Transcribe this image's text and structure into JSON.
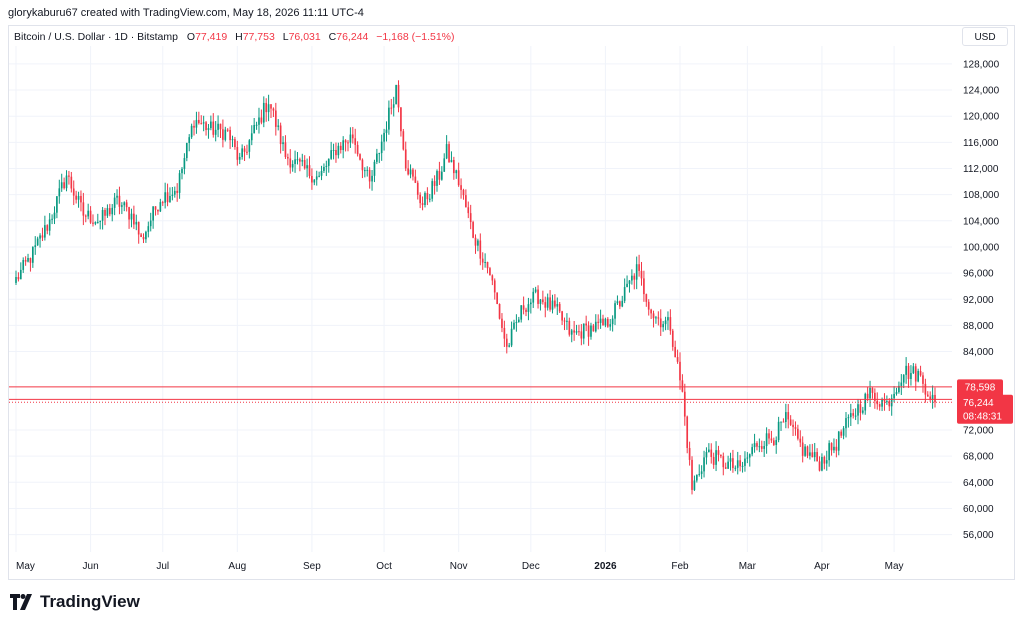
{
  "header": {
    "attribution": "glorykaburu67 created with TradingView.com, May 18, 2026 11:11 UTC-4"
  },
  "legend": {
    "symbol": "Bitcoin / U.S. Dollar · 1D · Bitstamp",
    "open_label": "O",
    "open": "77,419",
    "high_label": "H",
    "high": "77,753",
    "low_label": "L",
    "low": "76,031",
    "close_label": "C",
    "close": "76,244",
    "change": "−1,168 (−1.51%)"
  },
  "currency": "USD",
  "brand": {
    "name": "TradingView",
    "logo_icon": "tradingview-logo-icon"
  },
  "colors": {
    "up": "#089981",
    "down": "#f23645",
    "grid": "#f0f3fa",
    "price_label": "#f23645"
  },
  "chart_data": {
    "type": "candlestick",
    "title": "Bitcoin / U.S. Dollar · 1D · Bitstamp",
    "x_tick_labels": [
      "May",
      "Jun",
      "Jul",
      "Aug",
      "Sep",
      "Oct",
      "Nov",
      "Dec",
      "2026",
      "Feb",
      "Mar",
      "Apr",
      "May"
    ],
    "y_tick_labels": [
      "128,000",
      "124,000",
      "120,000",
      "116,000",
      "112,000",
      "108,000",
      "104,000",
      "100,000",
      "96,000",
      "92,000",
      "88,000",
      "84,000",
      "72,000",
      "68,000",
      "64,000",
      "60,000",
      "56,000"
    ],
    "y_ticks": [
      128000,
      124000,
      120000,
      116000,
      112000,
      108000,
      104000,
      100000,
      96000,
      92000,
      88000,
      84000,
      72000,
      68000,
      64000,
      60000,
      56000
    ],
    "ylim": [
      53500,
      130500
    ],
    "grid": true,
    "price_lines": [
      {
        "label": "78,598",
        "value": 78598
      },
      {
        "label": "76,678",
        "value": 76678
      }
    ],
    "last_price": {
      "label": "76,244",
      "countdown": "08:48:31",
      "value": 76244
    },
    "price_path_approx": [
      {
        "date": "2025-05-01",
        "close": 95000
      },
      {
        "date": "2025-05-08",
        "close": 99000
      },
      {
        "date": "2025-05-15",
        "close": 104000
      },
      {
        "date": "2025-05-22",
        "close": 111000
      },
      {
        "date": "2025-05-29",
        "close": 105000
      },
      {
        "date": "2025-06-05",
        "close": 104000
      },
      {
        "date": "2025-06-12",
        "close": 107000
      },
      {
        "date": "2025-06-19",
        "close": 104500
      },
      {
        "date": "2025-06-22",
        "close": 101000
      },
      {
        "date": "2025-06-30",
        "close": 107500
      },
      {
        "date": "2025-07-07",
        "close": 109000
      },
      {
        "date": "2025-07-14",
        "close": 119500
      },
      {
        "date": "2025-07-21",
        "close": 118000
      },
      {
        "date": "2025-07-28",
        "close": 117500
      },
      {
        "date": "2025-08-02",
        "close": 113000
      },
      {
        "date": "2025-08-09",
        "close": 118500
      },
      {
        "date": "2025-08-14",
        "close": 122500
      },
      {
        "date": "2025-08-21",
        "close": 114000
      },
      {
        "date": "2025-08-28",
        "close": 112000
      },
      {
        "date": "2025-09-04",
        "close": 110500
      },
      {
        "date": "2025-09-11",
        "close": 115000
      },
      {
        "date": "2025-09-18",
        "close": 117000
      },
      {
        "date": "2025-09-25",
        "close": 109500
      },
      {
        "date": "2025-10-01",
        "close": 117500
      },
      {
        "date": "2025-10-06",
        "close": 124500
      },
      {
        "date": "2025-10-10",
        "close": 113000
      },
      {
        "date": "2025-10-17",
        "close": 106500
      },
      {
        "date": "2025-10-24",
        "close": 111000
      },
      {
        "date": "2025-10-27",
        "close": 114500
      },
      {
        "date": "2025-11-01",
        "close": 110000
      },
      {
        "date": "2025-11-07",
        "close": 102000
      },
      {
        "date": "2025-11-14",
        "close": 96000
      },
      {
        "date": "2025-11-21",
        "close": 84500
      },
      {
        "date": "2025-11-28",
        "close": 91000
      },
      {
        "date": "2025-12-04",
        "close": 92500
      },
      {
        "date": "2025-12-12",
        "close": 90000
      },
      {
        "date": "2025-12-18",
        "close": 86500
      },
      {
        "date": "2025-12-25",
        "close": 87500
      },
      {
        "date": "2026-01-01",
        "close": 88000
      },
      {
        "date": "2026-01-07",
        "close": 91500
      },
      {
        "date": "2026-01-14",
        "close": 96500
      },
      {
        "date": "2026-01-21",
        "close": 89500
      },
      {
        "date": "2026-01-28",
        "close": 88000
      },
      {
        "date": "2026-02-02",
        "close": 77500
      },
      {
        "date": "2026-02-06",
        "close": 63000
      },
      {
        "date": "2026-02-12",
        "close": 68500
      },
      {
        "date": "2026-02-19",
        "close": 67000
      },
      {
        "date": "2026-02-26",
        "close": 66000
      },
      {
        "date": "2026-03-05",
        "close": 70000
      },
      {
        "date": "2026-03-12",
        "close": 71000
      },
      {
        "date": "2026-03-17",
        "close": 73500
      },
      {
        "date": "2026-03-24",
        "close": 69000
      },
      {
        "date": "2026-03-31",
        "close": 67000
      },
      {
        "date": "2026-04-07",
        "close": 70000
      },
      {
        "date": "2026-04-14",
        "close": 74500
      },
      {
        "date": "2026-04-21",
        "close": 77500
      },
      {
        "date": "2026-04-28",
        "close": 76000
      },
      {
        "date": "2026-05-05",
        "close": 81000
      },
      {
        "date": "2026-05-11",
        "close": 80500
      },
      {
        "date": "2026-05-18",
        "close": 76244
      }
    ]
  }
}
